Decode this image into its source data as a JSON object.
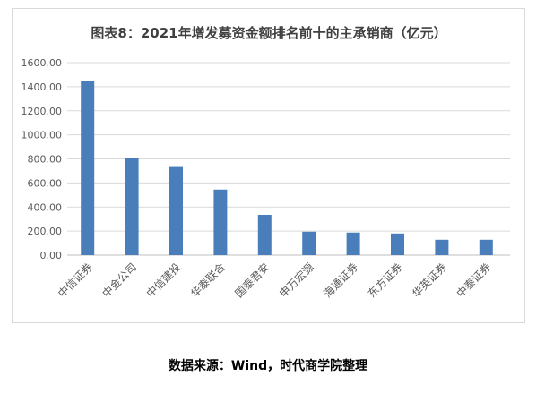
{
  "chart_data": {
    "type": "bar",
    "title": "图表8：2021年增发募资金额排名前十的主承销商（亿元）",
    "categories": [
      "中信证券",
      "中金公司",
      "中信建投",
      "华泰联合",
      "国泰君安",
      "申万宏源",
      "海通证券",
      "东方证券",
      "华英证券",
      "中泰证券"
    ],
    "values": [
      1450,
      810,
      740,
      545,
      335,
      195,
      188,
      180,
      128,
      128
    ],
    "ylim": [
      0,
      1600
    ],
    "yticks": [
      "0.00",
      "200.00",
      "400.00",
      "600.00",
      "800.00",
      "1000.00",
      "1200.00",
      "1400.00",
      "1600.00"
    ],
    "xlabel": "",
    "ylabel": "",
    "grid": true,
    "legend": "none",
    "bar_color": "#4a7ebb"
  },
  "source_note": "数据来源：Wind，时代商学院整理"
}
